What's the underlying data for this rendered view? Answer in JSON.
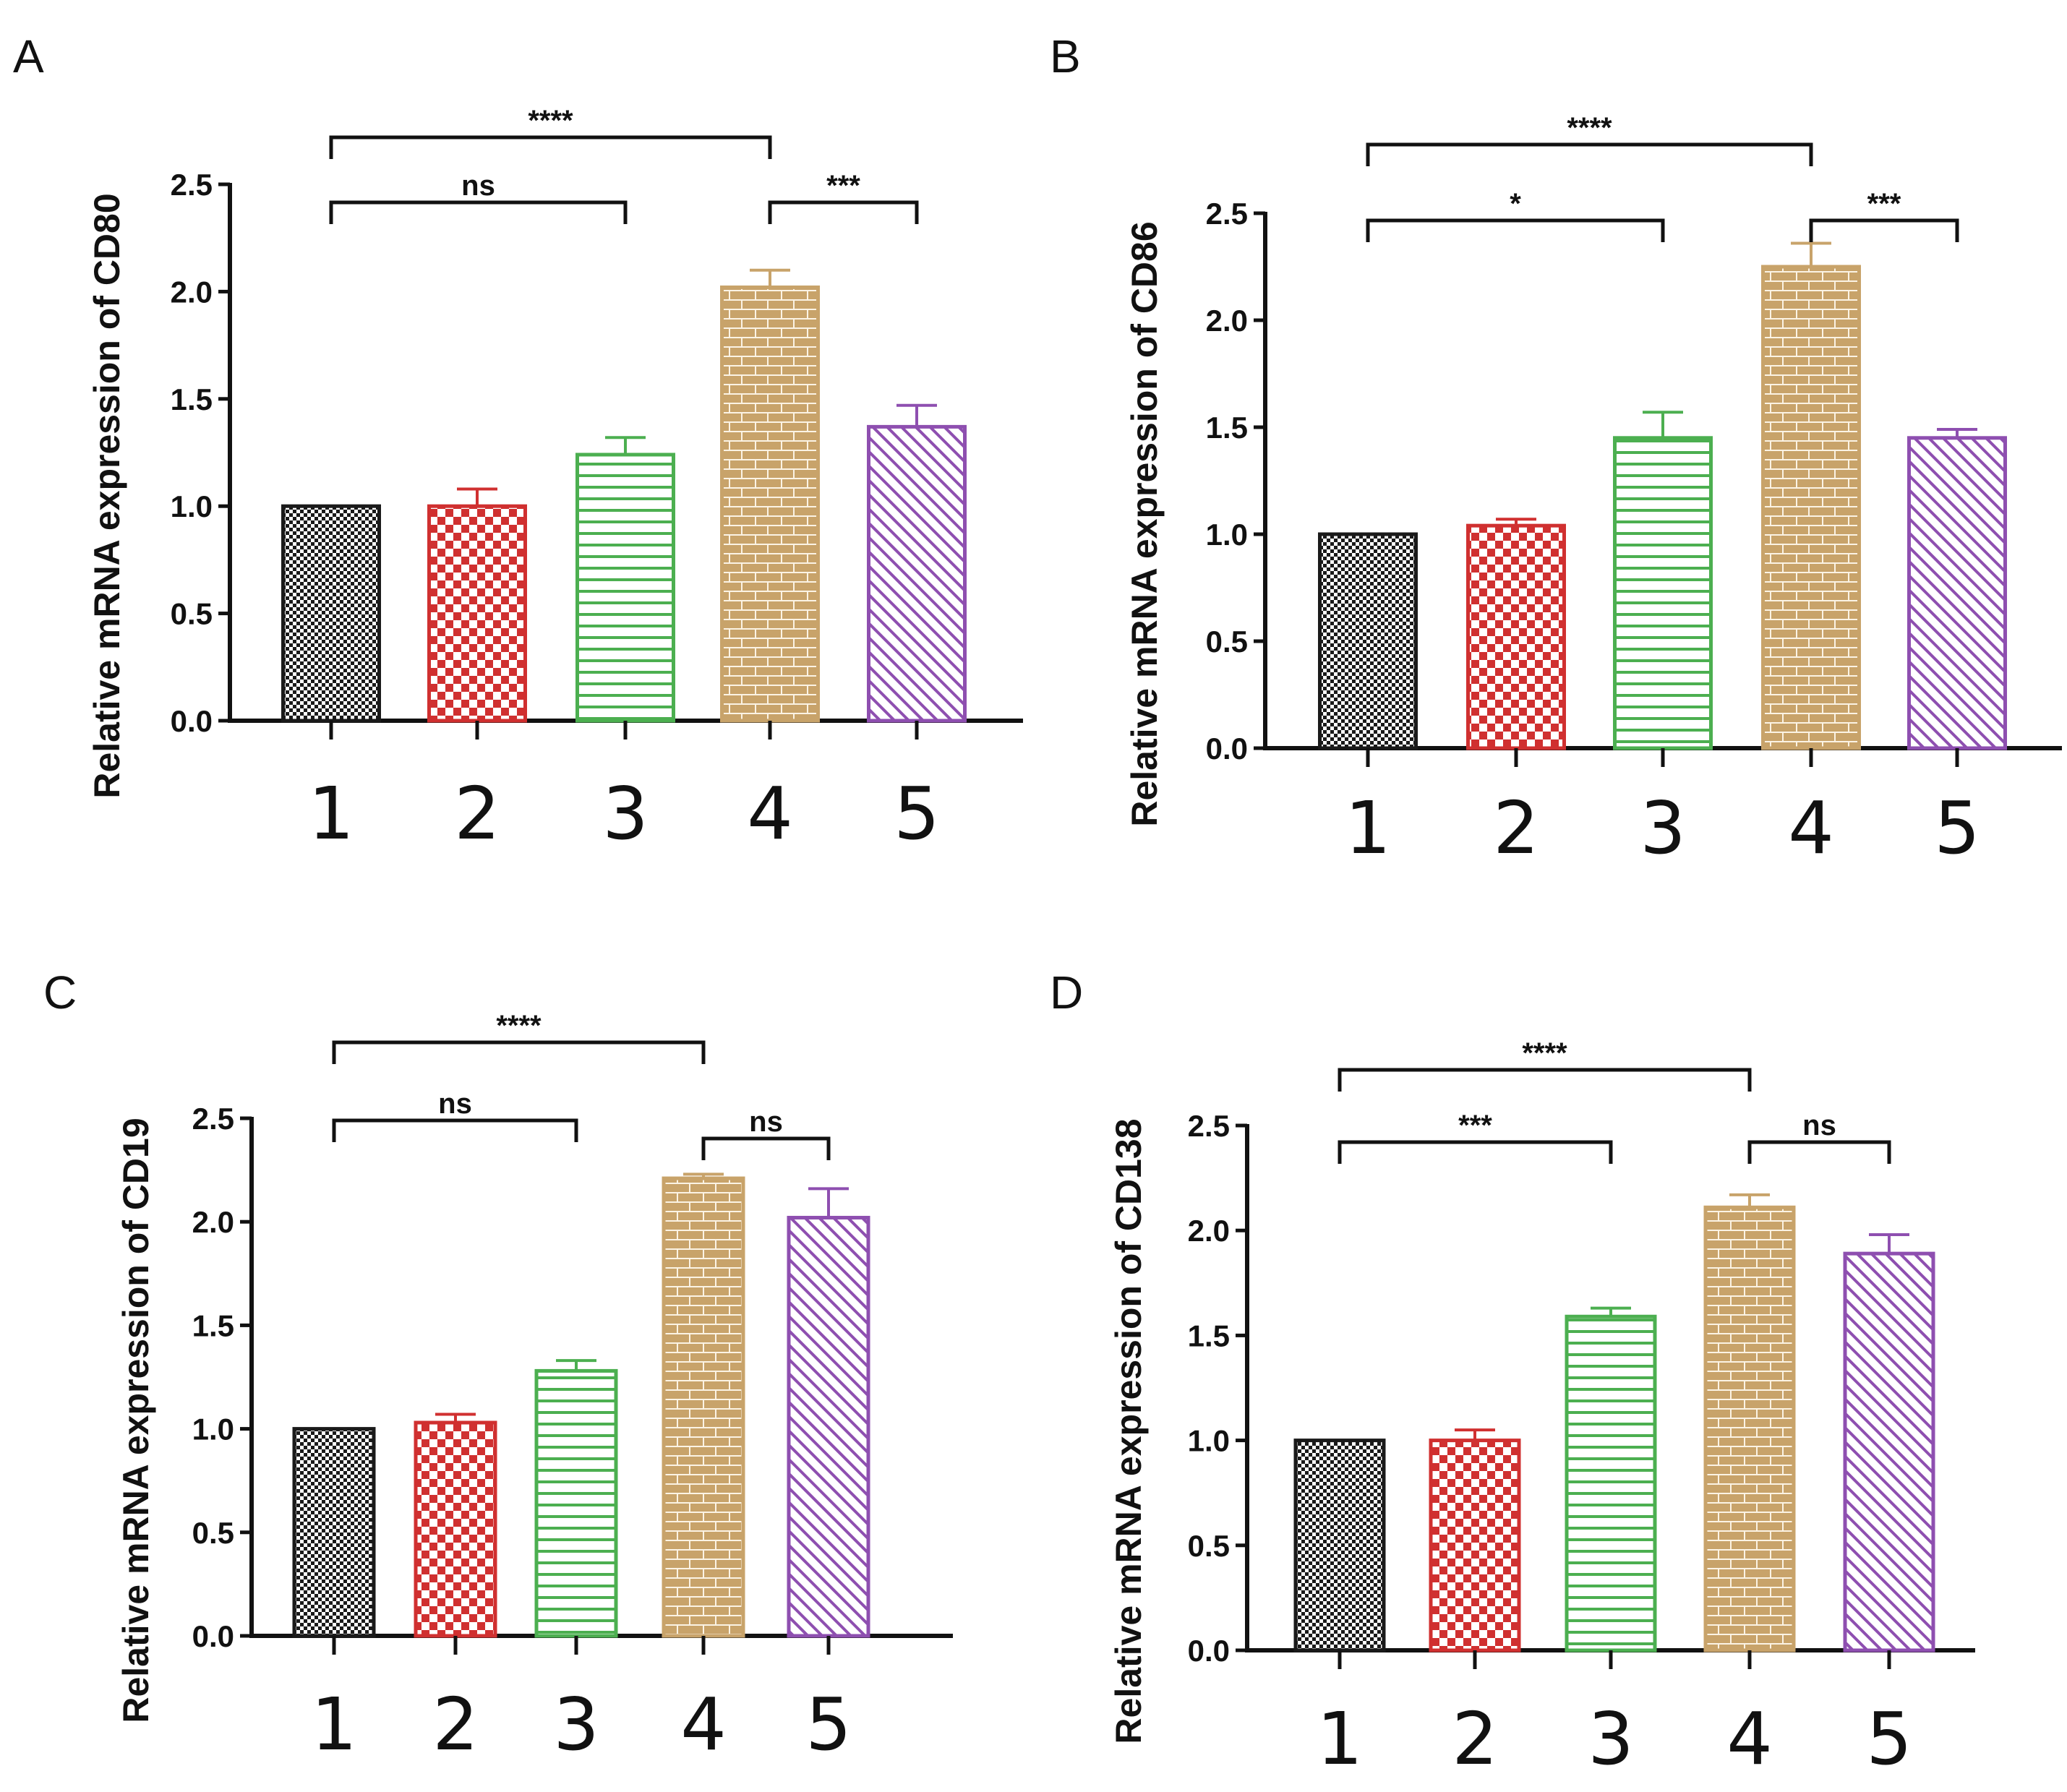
{
  "figure": {
    "colors": {
      "g1": "#1a1a1a",
      "g2": "#d03030",
      "g3": "#4caf50",
      "g4": "#c8a36a",
      "g5": "#8e4fb0"
    },
    "patterns": [
      "checker-fine",
      "checker-large",
      "horizontal-lines",
      "brick",
      "diagonal-lines"
    ]
  },
  "chart_data": [
    {
      "panel": "A",
      "type": "bar",
      "ylabel": "Relative mRNA expression of CD80",
      "categories": [
        "1",
        "2",
        "3",
        "4",
        "5"
      ],
      "values": [
        1.0,
        1.0,
        1.24,
        2.02,
        1.37
      ],
      "errors": [
        0.0,
        0.08,
        0.08,
        0.08,
        0.1
      ],
      "ylim": [
        0,
        2.5
      ],
      "yticks": [
        "0.0",
        "0.5",
        "1.0",
        "1.5",
        "2.0",
        "2.5"
      ],
      "significance": [
        {
          "from": 1,
          "to": 4,
          "label": "****",
          "level": 2
        },
        {
          "from": 1,
          "to": 3,
          "label": "ns",
          "level": 1
        },
        {
          "from": 4,
          "to": 5,
          "label": "***",
          "level": 1
        }
      ]
    },
    {
      "panel": "B",
      "type": "bar",
      "ylabel": "Relative mRNA expression of CD86",
      "categories": [
        "1",
        "2",
        "3",
        "4",
        "5"
      ],
      "values": [
        1.0,
        1.04,
        1.45,
        2.25,
        1.45
      ],
      "errors": [
        0.0,
        0.03,
        0.12,
        0.11,
        0.04
      ],
      "ylim": [
        0,
        2.5
      ],
      "yticks": [
        "0.0",
        "0.5",
        "1.0",
        "1.5",
        "2.0",
        "2.5"
      ],
      "significance": [
        {
          "from": 1,
          "to": 4,
          "label": "****",
          "level": 2
        },
        {
          "from": 1,
          "to": 3,
          "label": "*",
          "level": 1
        },
        {
          "from": 4,
          "to": 5,
          "label": "***",
          "level": 1
        }
      ]
    },
    {
      "panel": "C",
      "type": "bar",
      "ylabel": "Relative mRNA expression of CD19",
      "categories": [
        "1",
        "2",
        "3",
        "4",
        "5"
      ],
      "values": [
        1.0,
        1.03,
        1.28,
        2.21,
        2.02
      ],
      "errors": [
        0.0,
        0.04,
        0.05,
        0.02,
        0.14
      ],
      "ylim": [
        0,
        2.5
      ],
      "yticks": [
        "0.0",
        "0.5",
        "1.0",
        "1.5",
        "2.0",
        "2.5"
      ],
      "significance": [
        {
          "from": 1,
          "to": 4,
          "label": "****",
          "level": 2
        },
        {
          "from": 1,
          "to": 3,
          "label": "ns",
          "level": 1
        },
        {
          "from": 4,
          "to": 5,
          "label": "ns",
          "level": 0
        }
      ]
    },
    {
      "panel": "D",
      "type": "bar",
      "ylabel": "Relative mRNA expression of CD138",
      "categories": [
        "1",
        "2",
        "3",
        "4",
        "5"
      ],
      "values": [
        1.0,
        1.0,
        1.59,
        2.11,
        1.89
      ],
      "errors": [
        0.0,
        0.05,
        0.04,
        0.06,
        0.09
      ],
      "ylim": [
        0,
        2.5
      ],
      "yticks": [
        "0.0",
        "0.5",
        "1.0",
        "1.5",
        "2.0",
        "2.5"
      ],
      "significance": [
        {
          "from": 1,
          "to": 4,
          "label": "****",
          "level": 2
        },
        {
          "from": 1,
          "to": 3,
          "label": "***",
          "level": 1
        },
        {
          "from": 4,
          "to": 5,
          "label": "ns",
          "level": 1
        }
      ]
    }
  ]
}
